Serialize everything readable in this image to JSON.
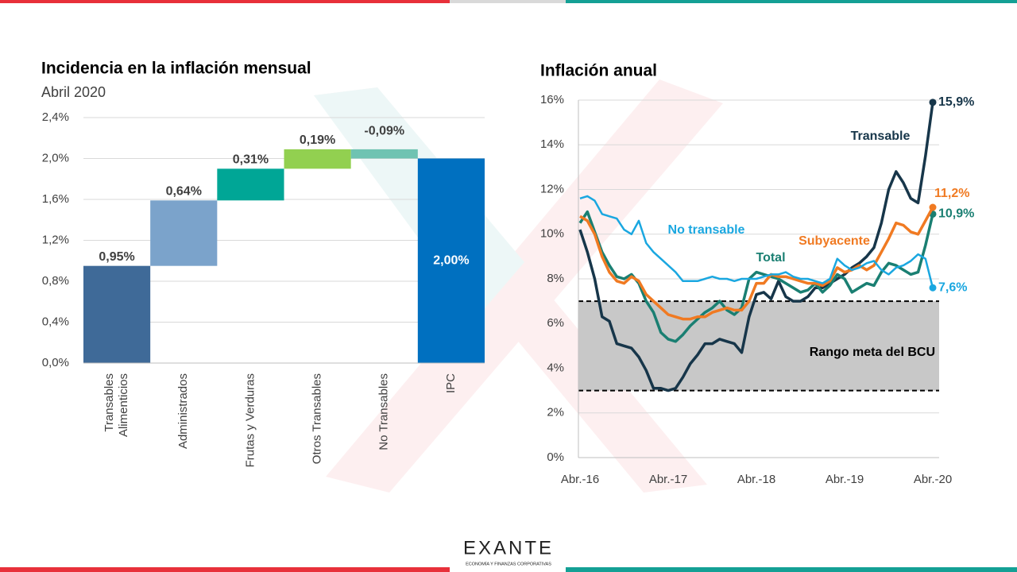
{
  "chart_data": [
    {
      "type": "waterfall",
      "title": "Incidencia en la inflación mensual",
      "subtitle": "Abril 2020",
      "categories": [
        "Transables\nAlimenticios",
        "Administrados",
        "Frutas y Verduras",
        "Otros Transables",
        "No Transables",
        "IPC"
      ],
      "values": [
        0.95,
        0.64,
        0.31,
        0.19,
        -0.09,
        2.0
      ],
      "value_labels": [
        "0,95%",
        "0,64%",
        "0,31%",
        "0,19%",
        "-0,09%",
        "2,00%"
      ],
      "is_total": [
        false,
        false,
        false,
        false,
        false,
        true
      ],
      "colors": [
        "#3f6a98",
        "#7ba3cb",
        "#00a696",
        "#92d050",
        "#6fc3b2",
        "#0070c0"
      ],
      "ylim": [
        0,
        2.4
      ],
      "yticks": [
        {
          "value": 0,
          "label": "0,0%"
        },
        {
          "value": 0.4,
          "label": "0,4%"
        },
        {
          "value": 0.8,
          "label": "0,8%"
        },
        {
          "value": 1.2,
          "label": "1,2%"
        },
        {
          "value": 1.6,
          "label": "1,6%"
        },
        {
          "value": 2.0,
          "label": "2,0%"
        },
        {
          "value": 2.4,
          "label": "2,4%"
        }
      ],
      "grid": true
    },
    {
      "type": "line",
      "title": "Inflación anual",
      "categories": [
        "Abr.-16",
        null,
        null,
        null,
        null,
        null,
        null,
        null,
        null,
        null,
        null,
        null,
        "Abr.-17",
        null,
        null,
        null,
        null,
        null,
        null,
        null,
        null,
        null,
        null,
        null,
        "Abr.-18",
        null,
        null,
        null,
        null,
        null,
        null,
        null,
        null,
        null,
        null,
        null,
        "Abr.-19",
        null,
        null,
        null,
        null,
        null,
        null,
        null,
        null,
        null,
        null,
        null,
        "Abr.-20"
      ],
      "series": [
        {
          "name": "Transable",
          "color": "#17364a",
          "values": [
            10.2,
            9.2,
            8.0,
            6.3,
            6.1,
            5.1,
            5.0,
            4.9,
            4.5,
            3.9,
            3.1,
            3.1,
            3.0,
            3.1,
            3.6,
            4.2,
            4.6,
            5.1,
            5.1,
            5.3,
            5.2,
            5.1,
            4.7,
            6.3,
            7.3,
            7.4,
            7.1,
            7.9,
            7.2,
            7.0,
            7.0,
            7.2,
            7.6,
            7.6,
            7.8,
            8.0,
            8.2,
            8.5,
            8.7,
            9.0,
            9.4,
            10.5,
            12.0,
            12.8,
            12.3,
            11.6,
            11.4,
            13.5,
            15.9
          ],
          "value_labels": [
            null,
            null,
            null,
            null,
            null,
            null,
            null,
            null,
            null,
            null,
            null,
            null,
            null,
            null,
            null,
            null,
            null,
            null,
            null,
            null,
            null,
            null,
            null,
            null,
            null,
            null,
            null,
            null,
            null,
            null,
            null,
            null,
            null,
            null,
            null,
            null,
            null,
            null,
            null,
            null,
            null,
            null,
            null,
            null,
            null,
            null,
            null,
            null,
            "15,9%"
          ]
        },
        {
          "name": "No transable",
          "color": "#1aa7e0",
          "values": [
            11.6,
            11.7,
            11.5,
            10.9,
            10.8,
            10.7,
            10.2,
            10.0,
            10.6,
            9.6,
            9.2,
            8.9,
            8.6,
            8.3,
            7.9,
            7.9,
            7.9,
            8.0,
            8.1,
            8.0,
            8.0,
            7.9,
            8.0,
            8.0,
            8.0,
            8.1,
            8.2,
            8.2,
            8.3,
            8.1,
            8.0,
            8.0,
            7.9,
            7.8,
            8.0,
            8.9,
            8.6,
            8.4,
            8.5,
            8.7,
            8.8,
            8.4,
            8.2,
            8.5,
            8.6,
            8.8,
            9.1,
            8.9,
            7.6
          ],
          "value_labels": [
            null,
            null,
            null,
            null,
            null,
            null,
            null,
            null,
            null,
            null,
            null,
            null,
            null,
            null,
            null,
            null,
            null,
            null,
            null,
            null,
            null,
            null,
            null,
            null,
            null,
            null,
            null,
            null,
            null,
            null,
            null,
            null,
            null,
            null,
            null,
            null,
            null,
            null,
            null,
            null,
            null,
            null,
            null,
            null,
            null,
            null,
            null,
            null,
            "7,6%"
          ]
        },
        {
          "name": "Subyacente",
          "color": "#f07a22",
          "values": [
            10.8,
            10.6,
            10.0,
            9.0,
            8.3,
            7.9,
            7.8,
            8.1,
            7.9,
            7.3,
            7.0,
            6.7,
            6.4,
            6.3,
            6.2,
            6.2,
            6.3,
            6.3,
            6.5,
            6.6,
            6.7,
            6.6,
            6.6,
            7.0,
            7.8,
            7.8,
            8.2,
            8.1,
            8.1,
            8.0,
            7.9,
            7.8,
            7.8,
            7.7,
            7.9,
            8.5,
            8.3,
            8.4,
            8.6,
            8.4,
            8.6,
            9.2,
            9.8,
            10.5,
            10.4,
            10.1,
            10.0,
            10.6,
            11.2
          ],
          "value_labels": [
            null,
            null,
            null,
            null,
            null,
            null,
            null,
            null,
            null,
            null,
            null,
            null,
            null,
            null,
            null,
            null,
            null,
            null,
            null,
            null,
            null,
            null,
            null,
            null,
            null,
            null,
            null,
            null,
            null,
            null,
            null,
            null,
            null,
            null,
            null,
            null,
            null,
            null,
            null,
            null,
            null,
            null,
            null,
            null,
            null,
            null,
            null,
            null,
            "11,2%"
          ]
        },
        {
          "name": "Total",
          "color": "#1a7f72",
          "values": [
            10.5,
            11.0,
            10.1,
            9.2,
            8.6,
            8.1,
            8.0,
            8.2,
            7.8,
            7.0,
            6.5,
            5.6,
            5.3,
            5.2,
            5.5,
            5.9,
            6.2,
            6.5,
            6.7,
            7.0,
            6.6,
            6.4,
            6.7,
            8.0,
            8.3,
            8.2,
            8.1,
            8.0,
            7.8,
            7.6,
            7.4,
            7.5,
            7.8,
            7.4,
            7.7,
            8.2,
            8.0,
            7.4,
            7.6,
            7.8,
            7.7,
            8.3,
            8.7,
            8.6,
            8.4,
            8.2,
            8.3,
            9.5,
            10.9
          ],
          "value_labels": [
            null,
            null,
            null,
            null,
            null,
            null,
            null,
            null,
            null,
            null,
            null,
            null,
            null,
            null,
            null,
            null,
            null,
            null,
            null,
            null,
            null,
            null,
            null,
            null,
            null,
            null,
            null,
            null,
            null,
            null,
            null,
            null,
            null,
            null,
            null,
            null,
            null,
            null,
            null,
            null,
            null,
            null,
            null,
            null,
            null,
            null,
            null,
            null,
            "10,9%"
          ]
        }
      ],
      "band": {
        "from": 3,
        "to": 7,
        "label": "Rango meta del BCU",
        "color": "#c8c8c8"
      },
      "ylim": [
        0,
        16
      ],
      "yticks": [
        {
          "value": 0,
          "label": "0%"
        },
        {
          "value": 2,
          "label": "2%"
        },
        {
          "value": 4,
          "label": "4%"
        },
        {
          "value": 6,
          "label": "6%"
        },
        {
          "value": 8,
          "label": "8%"
        },
        {
          "value": 10,
          "label": "10%"
        },
        {
          "value": 12,
          "label": "12%"
        },
        {
          "value": 14,
          "label": "14%"
        },
        {
          "value": 16,
          "label": "16%"
        }
      ],
      "grid": true
    }
  ],
  "footer": {
    "brand": "EXANTE",
    "tagline": "ECONOMÍA Y FINANZAS CORPORATIVAS"
  }
}
